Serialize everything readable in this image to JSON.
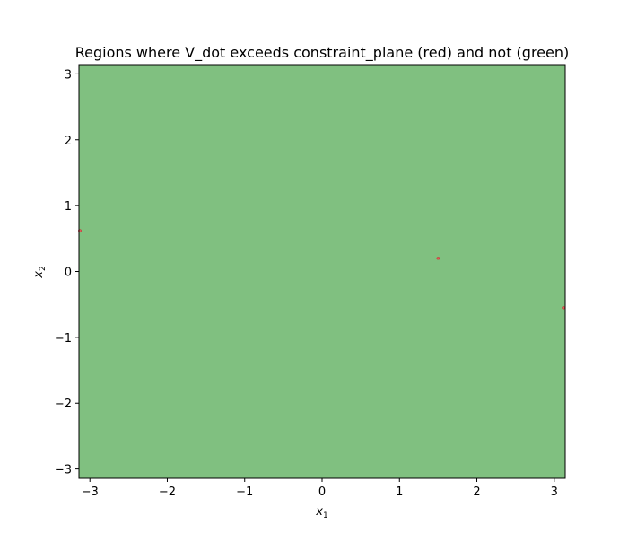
{
  "chart_data": {
    "type": "heatmap",
    "title": "Regions where V_dot exceeds constraint_plane (red) and not (green)",
    "xlabel": "x",
    "xlabel_sub": "1",
    "ylabel": "x",
    "ylabel_sub": "2",
    "xlim": [
      -3.14159,
      3.14159
    ],
    "ylim": [
      -3.14159,
      3.14159
    ],
    "xticks": [
      -3,
      -2,
      -1,
      0,
      1,
      2,
      3
    ],
    "yticks": [
      -3,
      -2,
      -1,
      0,
      1,
      2,
      3
    ],
    "xtick_labels": [
      "−3",
      "−2",
      "−1",
      "0",
      "1",
      "2",
      "3"
    ],
    "ytick_labels": [
      "−3",
      "−2",
      "−1",
      "0",
      "1",
      "2",
      "3"
    ],
    "grid": false,
    "regions": [
      {
        "label": "not exceeding",
        "color": "#80c080",
        "extent": "full domain"
      },
      {
        "label": "exceeding",
        "color": "#e06060",
        "points": [
          {
            "x": -3.14,
            "y": 0.62
          },
          {
            "x": 1.5,
            "y": 0.2
          },
          {
            "x": 3.12,
            "y": -0.55
          }
        ]
      }
    ],
    "colors": {
      "green_fill": "#80c080",
      "red_fill": "#e06060",
      "red_edge": "#cc3333",
      "axis": "#000000"
    }
  }
}
